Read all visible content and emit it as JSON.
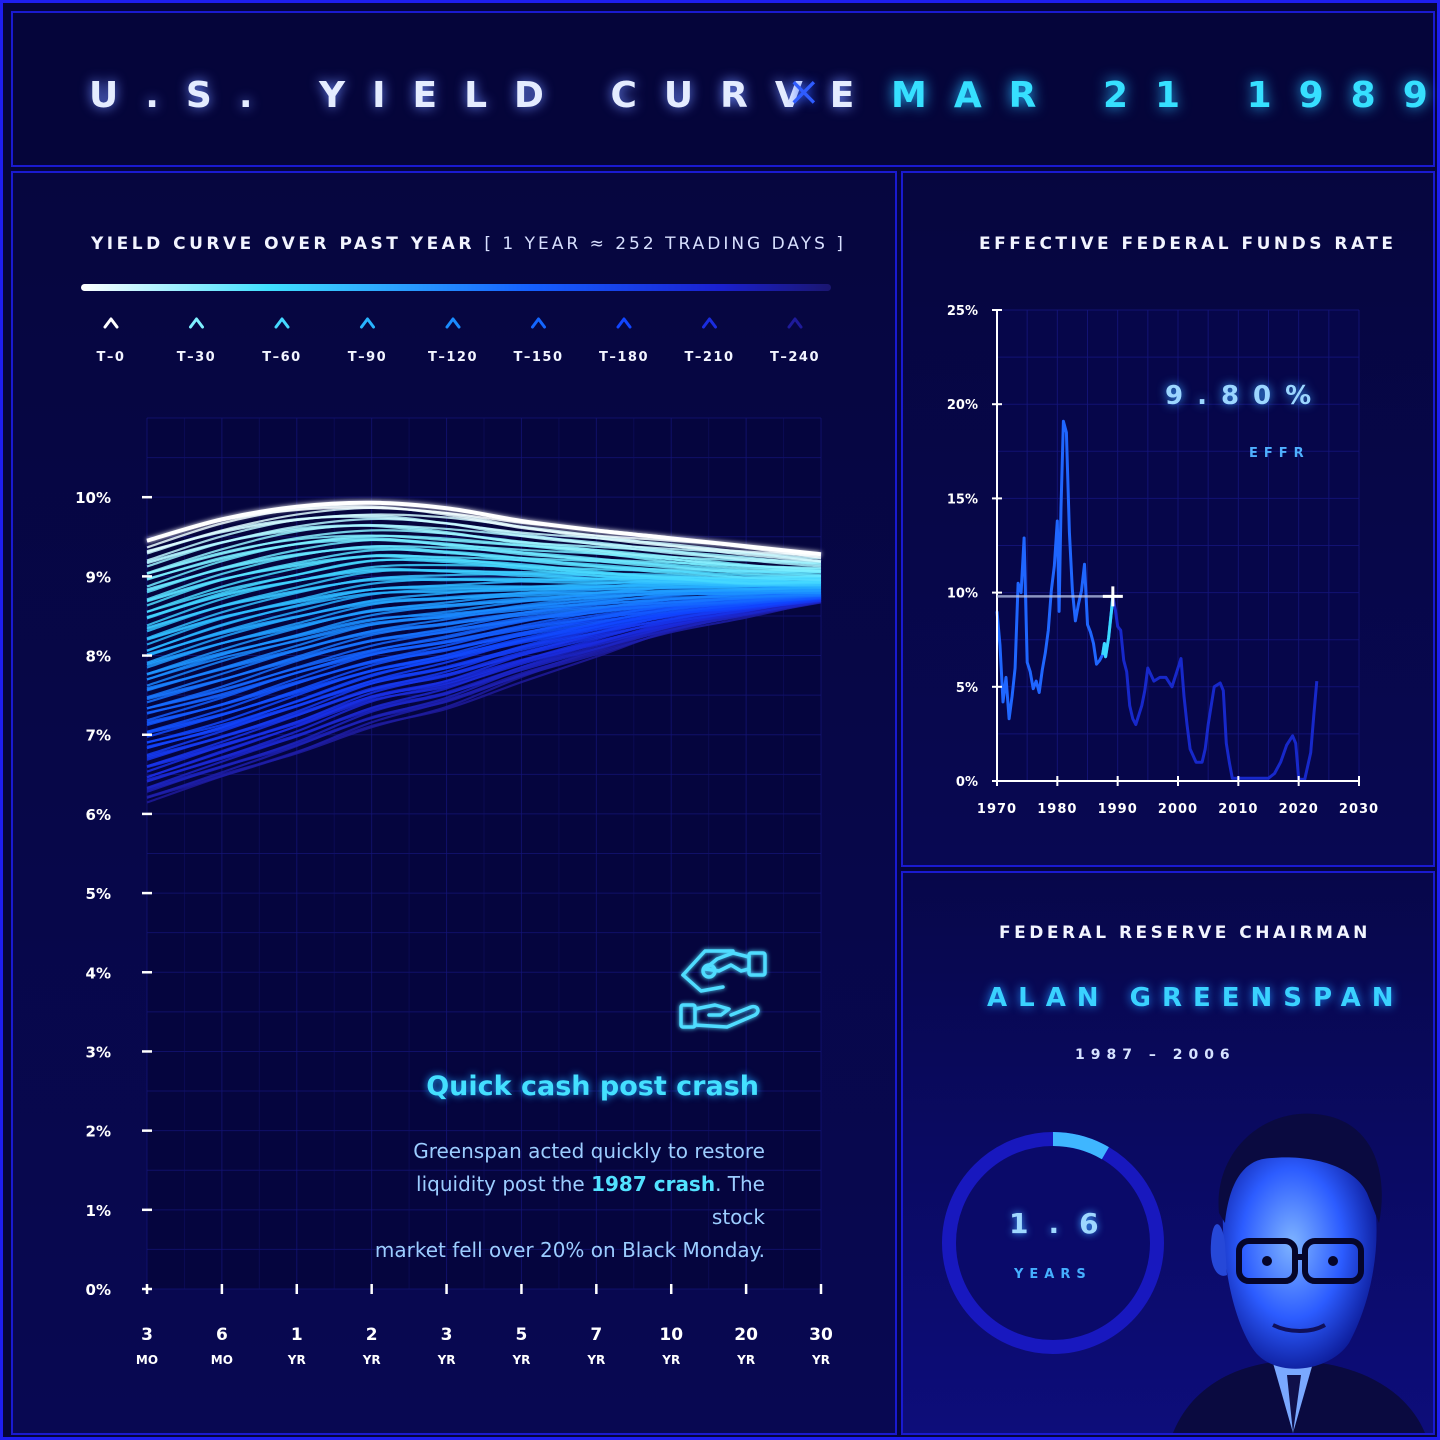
{
  "header": {
    "title": "U.S. YIELD CURVE",
    "separator": "×",
    "date": "MAR 21 1989"
  },
  "yield_section": {
    "title": "YIELD CURVE OVER PAST YEAR",
    "subtitle": "[ 1 YEAR ≈ 252 TRADING DAYS ]",
    "legend": [
      "T–0",
      "T–30",
      "T–60",
      "T–90",
      "T–120",
      "T–150",
      "T–180",
      "T–210",
      "T–240"
    ],
    "legend_colors": [
      "#ffffff",
      "#7ff0ff",
      "#45d8ff",
      "#28b4ff",
      "#1a8cff",
      "#1466ff",
      "#1145ff",
      "#1a2ce0",
      "#1e1a9a"
    ]
  },
  "effr_section": {
    "title": "EFFECTIVE FEDERAL FUNDS RATE",
    "value": "9.80%",
    "label": "EFFR"
  },
  "note": {
    "title": "Quick cash post crash",
    "line1": "Greenspan acted quickly to restore",
    "line2_pre": "liquidity post the ",
    "line2_bold": "1987 crash",
    "line2_post": ". The stock",
    "line3": "market fell over 20% on Black Monday.",
    "icon": "handshake-cash-icon"
  },
  "chairman": {
    "title": "FEDERAL RESERVE CHAIRMAN",
    "name": "ALAN GREENSPAN",
    "term": "1987 – 2006",
    "years_value": "1.6",
    "years_label": "YEARS",
    "tenure_fraction": 0.084,
    "portrait": "alan-greenspan-portrait"
  },
  "chart_data": [
    {
      "type": "line",
      "categories": [
        "3 MO",
        "6 MO",
        "1 YR",
        "2 YR",
        "3 YR",
        "5 YR",
        "7 YR",
        "10 YR",
        "20 YR",
        "30 YR"
      ],
      "tick_labels": [
        [
          "3",
          "MO"
        ],
        [
          "6",
          "MO"
        ],
        [
          "1",
          "YR"
        ],
        [
          "2",
          "YR"
        ],
        [
          "3",
          "YR"
        ],
        [
          "5",
          "YR"
        ],
        [
          "7",
          "YR"
        ],
        [
          "10",
          "YR"
        ],
        [
          "20",
          "YR"
        ],
        [
          "30",
          "YR"
        ]
      ],
      "y_ticks": [
        "0%",
        "1%",
        "2%",
        "3%",
        "4%",
        "5%",
        "6%",
        "7%",
        "8%",
        "9%",
        "10%"
      ],
      "ylim": [
        0,
        11
      ],
      "grid": true,
      "series": [
        {
          "name": "T–0",
          "values": [
            9.45,
            9.72,
            9.88,
            9.93,
            9.86,
            9.7,
            9.58,
            9.48,
            9.38,
            9.28
          ]
        },
        {
          "name": "T–30",
          "values": [
            9.0,
            9.28,
            9.48,
            9.55,
            9.48,
            9.38,
            9.3,
            9.22,
            9.15,
            9.1
          ]
        },
        {
          "name": "T–60",
          "values": [
            8.55,
            8.85,
            9.05,
            9.2,
            9.18,
            9.12,
            9.05,
            9.0,
            8.95,
            8.95
          ]
        },
        {
          "name": "T–90",
          "values": [
            8.1,
            8.4,
            8.62,
            8.8,
            8.85,
            8.88,
            8.9,
            8.92,
            8.9,
            8.9
          ]
        },
        {
          "name": "T–120",
          "values": [
            7.7,
            7.98,
            8.22,
            8.45,
            8.55,
            8.65,
            8.72,
            8.78,
            8.8,
            8.82
          ]
        },
        {
          "name": "T–150",
          "values": [
            7.3,
            7.55,
            7.85,
            8.1,
            8.25,
            8.42,
            8.55,
            8.65,
            8.72,
            8.78
          ]
        },
        {
          "name": "T–180",
          "values": [
            6.9,
            7.15,
            7.45,
            7.75,
            7.95,
            8.18,
            8.38,
            8.55,
            8.65,
            8.75
          ]
        },
        {
          "name": "T–210",
          "values": [
            6.5,
            6.8,
            7.1,
            7.45,
            7.65,
            7.95,
            8.2,
            8.42,
            8.58,
            8.72
          ]
        },
        {
          "name": "T–240",
          "values": [
            6.15,
            6.45,
            6.75,
            7.1,
            7.35,
            7.7,
            8.0,
            8.3,
            8.5,
            8.7
          ]
        }
      ]
    },
    {
      "type": "line",
      "x_ticks": [
        1970,
        1980,
        1990,
        2000,
        2010,
        2020,
        2030
      ],
      "y_ticks": [
        "0%",
        "5%",
        "10%",
        "15%",
        "20%",
        "25%"
      ],
      "xlim": [
        1970,
        2030
      ],
      "ylim": [
        0,
        25
      ],
      "grid": true,
      "current": {
        "x": 1989.2,
        "y": 9.8
      },
      "series": [
        {
          "x": [
            1970,
            1970.5,
            1971,
            1971.5,
            1972,
            1972.5,
            1973,
            1973.5,
            1974,
            1974.5,
            1975,
            1975.5,
            1976,
            1976.5,
            1977,
            1977.5,
            1978,
            1978.5,
            1979,
            1979.5,
            1980,
            1980.3,
            1980.6,
            1981,
            1981.5,
            1982,
            1982.5,
            1983,
            1983.5,
            1984,
            1984.5,
            1985,
            1985.5,
            1986,
            1986.5,
            1987,
            1987.5,
            1987.8,
            1988,
            1988.5,
            1989,
            1989.2
          ],
          "y": [
            9.0,
            7.2,
            4.2,
            5.5,
            3.3,
            4.5,
            6.0,
            10.5,
            10.0,
            12.9,
            6.3,
            5.8,
            4.9,
            5.3,
            4.7,
            5.9,
            6.8,
            8.0,
            10.1,
            11.4,
            13.8,
            9.0,
            14.5,
            19.1,
            18.5,
            13.2,
            10.1,
            8.5,
            9.4,
            10.1,
            11.5,
            8.3,
            7.9,
            7.3,
            6.2,
            6.4,
            6.7,
            7.3,
            6.6,
            7.6,
            9.1,
            9.8
          ]
        },
        {
          "x": [
            1989.2,
            1989.6,
            1990,
            1990.5,
            1991,
            1991.5,
            1992,
            1992.5,
            1993,
            1994,
            1994.5,
            1995,
            1996,
            1997,
            1998,
            1999,
            2000,
            2000.5,
            2001,
            2001.5,
            2002,
            2003,
            2004,
            2004.5,
            2005,
            2006,
            2007,
            2007.5,
            2008,
            2008.5,
            2009,
            2012,
            2015,
            2016,
            2017,
            2018,
            2019,
            2019.5,
            2020,
            2021,
            2022,
            2022.5,
            2023
          ],
          "y": [
            9.8,
            9.1,
            8.2,
            8.0,
            6.4,
            5.8,
            4.0,
            3.3,
            3.0,
            4.0,
            4.8,
            6.0,
            5.3,
            5.5,
            5.5,
            5.0,
            6.0,
            6.5,
            4.5,
            3.0,
            1.7,
            1.0,
            1.0,
            1.7,
            3.0,
            5.0,
            5.2,
            4.8,
            2.0,
            1.0,
            0.15,
            0.15,
            0.15,
            0.4,
            1.0,
            1.9,
            2.4,
            2.0,
            0.1,
            0.08,
            1.5,
            3.5,
            5.3
          ]
        }
      ]
    }
  ]
}
